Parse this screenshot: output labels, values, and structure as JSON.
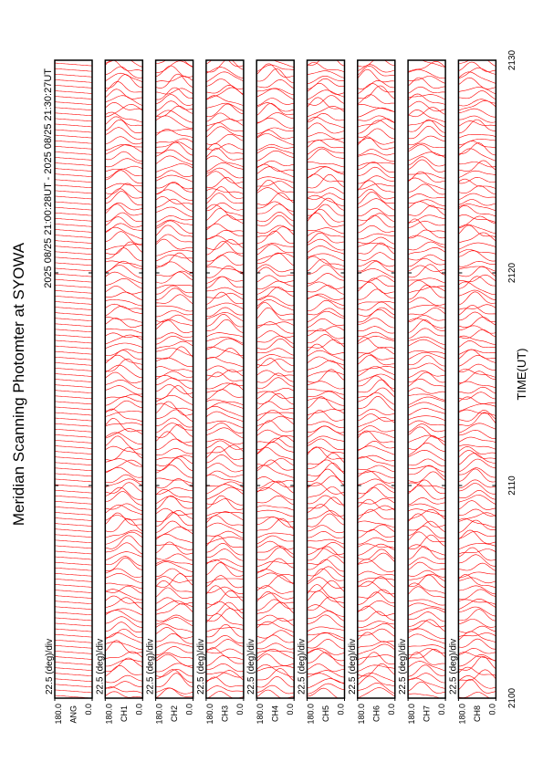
{
  "chart_data": {
    "type": "line",
    "title": "Meridian Scanning Photomter at SYOWA",
    "subtitle": "2025 08/25 21:00:28UT - 2025 08/25 21:30:27UT",
    "x_label": "TIME(UT)",
    "xlim": [
      2100,
      2130
    ],
    "xticks": [
      2100,
      2110,
      2120,
      2130
    ],
    "color": "#ff0000",
    "panels": [
      {
        "name": "ANG",
        "scale": "22.5 (deg)/div",
        "ylim": [
          0,
          180
        ],
        "yticks": [
          {
            "value": 0,
            "label": "0.0"
          },
          {
            "value": 180,
            "label": "180.0"
          }
        ]
      },
      {
        "name": "CH1",
        "scale": "22.5 (deg)/div",
        "ylim": [
          0,
          180
        ],
        "yticks": [
          {
            "value": 0,
            "label": "0.0"
          },
          {
            "value": 180,
            "label": "180.0"
          }
        ]
      },
      {
        "name": "CH2",
        "scale": "22.5 (deg)/div",
        "ylim": [
          0,
          180
        ],
        "yticks": [
          {
            "value": 0,
            "label": "0.0"
          },
          {
            "value": 180,
            "label": "180.0"
          }
        ]
      },
      {
        "name": "CH3",
        "scale": "22.5 (deg)/div",
        "ylim": [
          0,
          180
        ],
        "yticks": [
          {
            "value": 0,
            "label": "0.0"
          },
          {
            "value": 180,
            "label": "180.0"
          }
        ]
      },
      {
        "name": "CH4",
        "scale": "22.5 (deg)/div",
        "ylim": [
          0,
          180
        ],
        "yticks": [
          {
            "value": 0,
            "label": "0.0"
          },
          {
            "value": 180,
            "label": "180.0"
          }
        ]
      },
      {
        "name": "CH5",
        "scale": "22.5 (deg)/div",
        "ylim": [
          0,
          180
        ],
        "yticks": [
          {
            "value": 0,
            "label": "0.0"
          },
          {
            "value": 180,
            "label": "180.0"
          }
        ]
      },
      {
        "name": "CH6",
        "scale": "22.5 (deg)/div",
        "ylim": [
          0,
          180
        ],
        "yticks": [
          {
            "value": 0,
            "label": "0.0"
          },
          {
            "value": 180,
            "label": "180.0"
          }
        ]
      },
      {
        "name": "CH7",
        "scale": "22.5 (deg)/div",
        "ylim": [
          0,
          180
        ],
        "yticks": [
          {
            "value": 0,
            "label": "0.0"
          },
          {
            "value": 180,
            "label": "180.0"
          }
        ]
      },
      {
        "name": "CH8",
        "scale": "22.5 (deg)/div",
        "ylim": [
          0,
          180
        ],
        "yticks": [
          {
            "value": 0,
            "label": "0.0"
          },
          {
            "value": 180,
            "label": "180.0"
          }
        ]
      }
    ]
  }
}
